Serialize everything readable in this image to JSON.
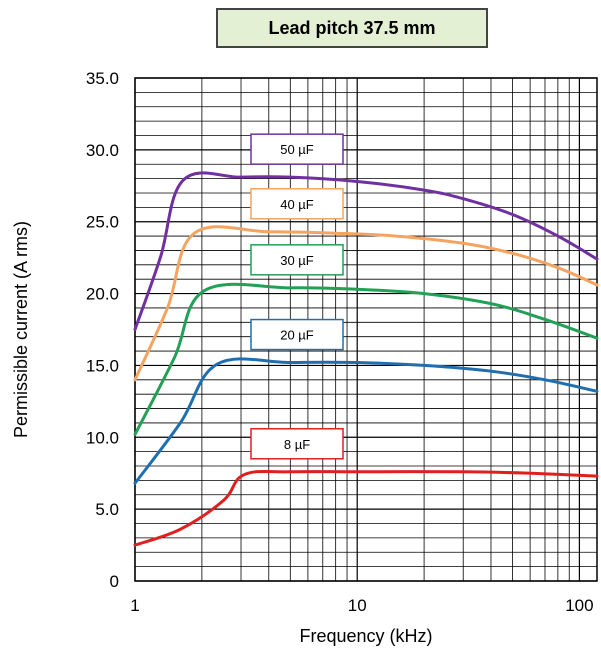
{
  "chart_data": {
    "type": "line",
    "title": "Lead pitch 37.5 mm",
    "xlabel": "Frequency (kHz)",
    "ylabel": "Permissible current  (A rms)",
    "x_scale": "log",
    "xlim": [
      1,
      120
    ],
    "ylim": [
      0,
      35
    ],
    "x_ticks": [
      {
        "value": 1,
        "label": "1"
      },
      {
        "value": 10,
        "label": "10"
      },
      {
        "value": 100,
        "label": "100"
      }
    ],
    "y_ticks": [
      {
        "value": 0,
        "label": "0"
      },
      {
        "value": 5,
        "label": "5.0"
      },
      {
        "value": 10,
        "label": "10.0"
      },
      {
        "value": 15,
        "label": "15.0"
      },
      {
        "value": 20,
        "label": "20.0"
      },
      {
        "value": 25,
        "label": "25.0"
      },
      {
        "value": 30,
        "label": "30.0"
      },
      {
        "value": 35,
        "label": "35.0"
      }
    ],
    "grid": true,
    "series": [
      {
        "name": "50 µF",
        "color": "#7030a0",
        "points": [
          [
            1,
            17.5
          ],
          [
            1.3,
            22.5
          ],
          [
            1.65,
            27.9
          ],
          [
            3,
            28.1
          ],
          [
            5,
            28.1
          ],
          [
            10,
            27.8
          ],
          [
            20,
            27.2
          ],
          [
            30,
            26.6
          ],
          [
            50,
            25.5
          ],
          [
            80,
            24.0
          ],
          [
            120,
            22.4
          ]
        ]
      },
      {
        "name": "40 µF",
        "color": "#f4a460",
        "points": [
          [
            1,
            14.0
          ],
          [
            1.4,
            19.0
          ],
          [
            1.85,
            24.2
          ],
          [
            4,
            24.3
          ],
          [
            8,
            24.2
          ],
          [
            15,
            24.0
          ],
          [
            30,
            23.5
          ],
          [
            50,
            22.8
          ],
          [
            80,
            21.8
          ],
          [
            120,
            20.6
          ]
        ]
      },
      {
        "name": "30 µF",
        "color": "#22a055",
        "points": [
          [
            1,
            10.2
          ],
          [
            1.5,
            15.5
          ],
          [
            2.05,
            20.2
          ],
          [
            5,
            20.4
          ],
          [
            10,
            20.3
          ],
          [
            20,
            20.0
          ],
          [
            40,
            19.3
          ],
          [
            70,
            18.2
          ],
          [
            120,
            16.9
          ]
        ]
      },
      {
        "name": "20 µF",
        "color": "#1f6fb0",
        "points": [
          [
            1,
            6.8
          ],
          [
            1.6,
            11.0
          ],
          [
            2.35,
            15.1
          ],
          [
            5,
            15.2
          ],
          [
            10,
            15.2
          ],
          [
            20,
            15.0
          ],
          [
            40,
            14.6
          ],
          [
            70,
            14.0
          ],
          [
            120,
            13.2
          ]
        ]
      },
      {
        "name": "8 µF",
        "color": "#e02020",
        "points": [
          [
            1,
            2.5
          ],
          [
            1.6,
            3.6
          ],
          [
            2.5,
            5.6
          ],
          [
            3.1,
            7.4
          ],
          [
            5,
            7.6
          ],
          [
            10,
            7.6
          ],
          [
            30,
            7.6
          ],
          [
            60,
            7.5
          ],
          [
            120,
            7.3
          ]
        ]
      }
    ]
  }
}
